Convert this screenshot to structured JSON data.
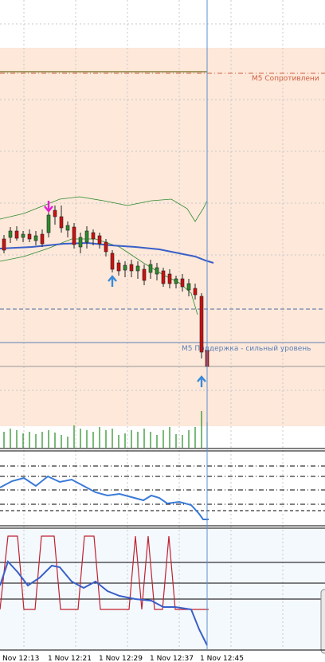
{
  "levels": {
    "resistance": "M5 Сопротивлени",
    "support": "M5 Поддержка - сильный уровень"
  },
  "time_axis": [
    "Nov 12:13",
    "1 Nov 12:21",
    "1 Nov 12:29",
    "1 Nov 12:37",
    "1 Nov 12:45"
  ]
}
